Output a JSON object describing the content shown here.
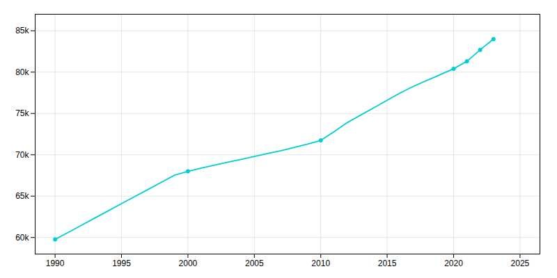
{
  "chart_data": {
    "type": "line",
    "x": [
      1990,
      1991,
      1992,
      1993,
      1994,
      1995,
      1996,
      1997,
      1998,
      1999,
      2000,
      2001,
      2002,
      2003,
      2004,
      2005,
      2006,
      2007,
      2008,
      2009,
      2010,
      2011,
      2012,
      2013,
      2014,
      2015,
      2016,
      2017,
      2018,
      2019,
      2020,
      2021,
      2022,
      2023
    ],
    "values": [
      59767,
      60630,
      61490,
      62360,
      63220,
      64090,
      64950,
      65810,
      66680,
      67540,
      68000,
      68400,
      68750,
      69100,
      69450,
      69800,
      70150,
      70500,
      70900,
      71300,
      71741,
      72800,
      73900,
      74800,
      75700,
      76600,
      77500,
      78300,
      79000,
      79700,
      80411,
      81300,
      82700,
      84000
    ],
    "marker_x": [
      1990,
      2000,
      2010,
      2020,
      2021,
      2022,
      2023
    ],
    "marker_values": [
      59767,
      68000,
      71741,
      80411,
      81300,
      82700,
      84000
    ],
    "color": "#00CED1",
    "marker": "circle",
    "xlim": [
      1988.5,
      2026.5
    ],
    "ylim": [
      58000,
      87000
    ],
    "xticks": [
      1990,
      1995,
      2000,
      2005,
      2010,
      2015,
      2020,
      2025
    ],
    "yticks": [
      {
        "value": 60000,
        "label": "60k"
      },
      {
        "value": 65000,
        "label": "65k"
      },
      {
        "value": 70000,
        "label": "70k"
      },
      {
        "value": 75000,
        "label": "75k"
      },
      {
        "value": 80000,
        "label": "80k"
      },
      {
        "value": 85000,
        "label": "85k"
      }
    ],
    "grid": true
  }
}
